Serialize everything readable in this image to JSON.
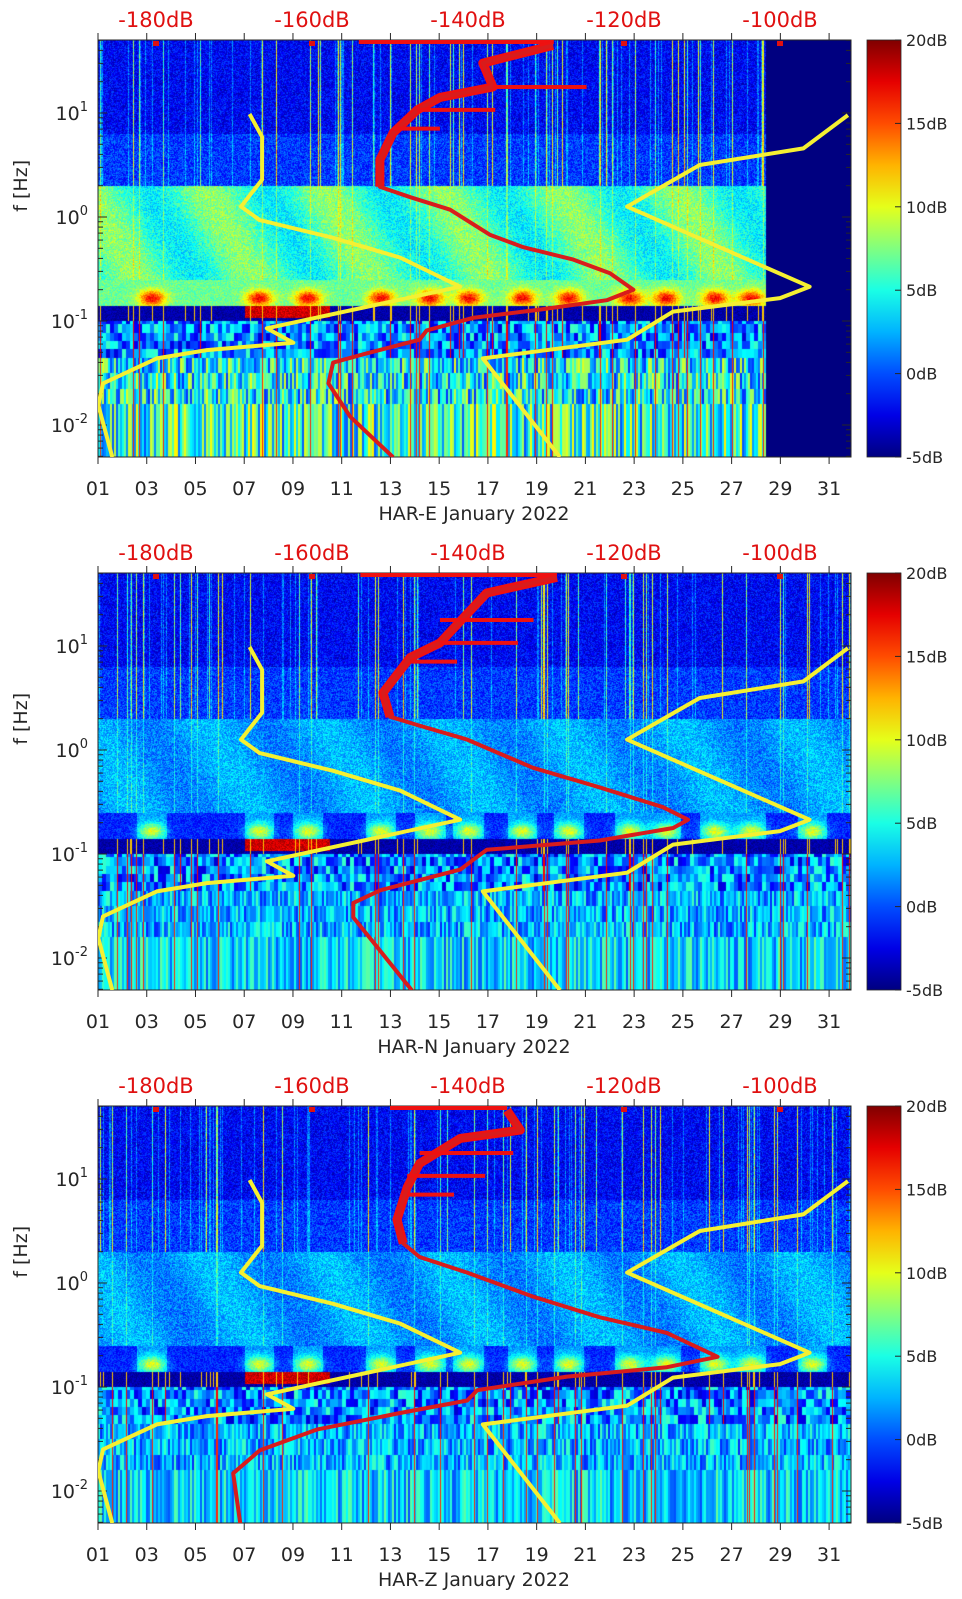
{
  "chart_data": {
    "type": "heatmap",
    "colors": {
      "nlnm_nhnm": "#f5f032",
      "station_psd": "#d81c1c",
      "top_axis": "#e01010",
      "text": "#262626"
    },
    "x_axis": {
      "unit": "day of January 2022",
      "range": [
        1,
        31.9
      ],
      "tick_labels": [
        "01",
        "03",
        "05",
        "07",
        "09",
        "11",
        "13",
        "15",
        "17",
        "19",
        "21",
        "23",
        "25",
        "27",
        "29",
        "31"
      ],
      "tick_values": [
        1,
        3,
        5,
        7,
        9,
        11,
        13,
        15,
        17,
        19,
        21,
        23,
        25,
        27,
        29,
        31
      ]
    },
    "y_axis": {
      "label": "f [Hz]",
      "scale": "log",
      "range_hz": [
        0.005,
        50
      ],
      "ticks": [
        {
          "base": "10",
          "exp": "1",
          "value": 10
        },
        {
          "base": "10",
          "exp": "0",
          "value": 1
        },
        {
          "base": "10",
          "exp": "-1",
          "value": 0.1
        },
        {
          "base": "10",
          "exp": "-2",
          "value": 0.01
        }
      ]
    },
    "top_axis": {
      "unit": "dB",
      "range": [
        -187.4,
        -90.9
      ],
      "tick_labels": [
        "-180dB",
        "-160dB",
        "-140dB",
        "-120dB",
        "-100dB"
      ],
      "tick_values": [
        -180,
        -160,
        -140,
        -120,
        -100
      ]
    },
    "colorbar": {
      "range": [
        -5,
        20
      ],
      "tick_labels": [
        "-5dB",
        "0dB",
        "5dB",
        "10dB",
        "15dB",
        "20dB"
      ],
      "tick_values": [
        -5,
        0,
        5,
        10,
        15,
        20
      ],
      "colormap": "jet"
    },
    "point_format": [
      "dB",
      "log10_f_Hz"
    ],
    "nlnm": [
      [
        -168.0,
        0.99
      ],
      [
        -166.4,
        0.77
      ],
      [
        -166.4,
        0.36
      ],
      [
        -169.1,
        0.1
      ],
      [
        -166.7,
        -0.03
      ],
      [
        -157.3,
        -0.2
      ],
      [
        -148.7,
        -0.39
      ],
      [
        -141.0,
        -0.67
      ],
      [
        -165.8,
        -1.07
      ],
      [
        -162.4,
        -1.21
      ],
      [
        -173.5,
        -1.28
      ],
      [
        -179.9,
        -1.36
      ],
      [
        -186.8,
        -1.6
      ],
      [
        -187.4,
        -1.81
      ],
      [
        -185.6,
        -2.31
      ]
    ],
    "nhnm": [
      [
        -91.3,
        0.98
      ],
      [
        -97.0,
        0.66
      ],
      [
        -110.3,
        0.5
      ],
      [
        -119.6,
        0.1
      ],
      [
        -96.2,
        -0.67
      ],
      [
        -100.0,
        -0.78
      ],
      [
        -113.7,
        -0.91
      ],
      [
        -119.6,
        -1.18
      ],
      [
        -138.1,
        -1.36
      ],
      [
        -128.2,
        -2.31
      ]
    ],
    "panels": [
      {
        "name": "HAR-E",
        "xlabel": "HAR-E January 2022",
        "level": 1.0,
        "data_end_day": 28.4,
        "top_line": [
          -154,
          -129
        ],
        "psd": [
          [
            -129.1,
            1.65
          ],
          [
            -138.1,
            1.48
          ],
          [
            -136.8,
            1.25
          ],
          [
            -143.6,
            1.15
          ],
          [
            -146.5,
            1.03
          ],
          [
            -149.6,
            0.81
          ],
          [
            -151.3,
            0.55
          ],
          [
            -151.3,
            0.29
          ],
          [
            -147.4,
            0.19
          ],
          [
            -142.3,
            0.07
          ],
          [
            -137.2,
            -0.17
          ],
          [
            -132.9,
            -0.29
          ],
          [
            -126.5,
            -0.41
          ],
          [
            -121.8,
            -0.54
          ],
          [
            -118.8,
            -0.7
          ],
          [
            -122.2,
            -0.8
          ],
          [
            -130.8,
            -0.89
          ],
          [
            -139.4,
            -0.97
          ],
          [
            -145.3,
            -1.09
          ],
          [
            -146.2,
            -1.18
          ],
          [
            -152.9,
            -1.31
          ],
          [
            -157.3,
            -1.4
          ],
          [
            -157.9,
            -1.6
          ],
          [
            -155.1,
            -1.92
          ],
          [
            -149.6,
            -2.31
          ]
        ]
      },
      {
        "name": "HAR-N",
        "xlabel": "HAR-N January 2022",
        "level": 0.45,
        "data_end_day": 31.9,
        "top_line": [
          -153.8,
          -128.6
        ],
        "psd": [
          [
            -128.6,
            1.66
          ],
          [
            -137.6,
            1.51
          ],
          [
            -143.6,
            1.03
          ],
          [
            -147.4,
            0.89
          ],
          [
            -150.9,
            0.55
          ],
          [
            -150.0,
            0.32
          ],
          [
            -146.5,
            0.24
          ],
          [
            -140.1,
            0.1
          ],
          [
            -131.7,
            -0.17
          ],
          [
            -123.1,
            -0.36
          ],
          [
            -115.0,
            -0.55
          ],
          [
            -111.8,
            -0.67
          ],
          [
            -113.7,
            -0.75
          ],
          [
            -123.1,
            -0.87
          ],
          [
            -137.6,
            -0.96
          ],
          [
            -139.4,
            -1.06
          ],
          [
            -141.0,
            -1.15
          ],
          [
            -151.3,
            -1.35
          ],
          [
            -154.7,
            -1.47
          ],
          [
            -154.7,
            -1.61
          ],
          [
            -147.2,
            -2.31
          ]
        ]
      },
      {
        "name": "HAR-Z",
        "xlabel": "HAR-Z January 2022",
        "level": 0.5,
        "data_end_day": 31.9,
        "top_line": [
          -150.0,
          -135.0
        ],
        "psd": [
          [
            -135.0,
            1.66
          ],
          [
            -133.3,
            1.47
          ],
          [
            -141.0,
            1.39
          ],
          [
            -146.2,
            1.15
          ],
          [
            -147.8,
            0.92
          ],
          [
            -149.1,
            0.61
          ],
          [
            -148.3,
            0.38
          ],
          [
            -146.2,
            0.25
          ],
          [
            -140.1,
            0.1
          ],
          [
            -131.7,
            -0.13
          ],
          [
            -123.1,
            -0.33
          ],
          [
            -114.5,
            -0.48
          ],
          [
            -108.0,
            -0.71
          ],
          [
            -114.5,
            -0.81
          ],
          [
            -127.3,
            -0.9
          ],
          [
            -138.8,
            -1.03
          ],
          [
            -140.1,
            -1.13
          ],
          [
            -148.7,
            -1.25
          ],
          [
            -159.4,
            -1.41
          ],
          [
            -166.7,
            -1.61
          ],
          [
            -170.1,
            -1.83
          ],
          [
            -169.2,
            -2.31
          ]
        ]
      }
    ]
  }
}
